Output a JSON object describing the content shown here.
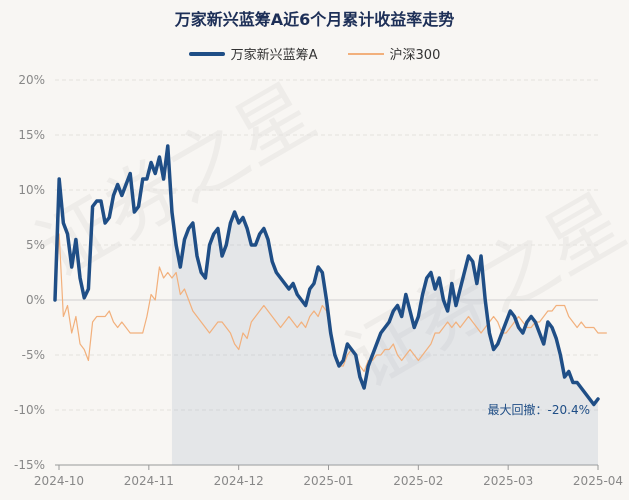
{
  "chart_data": {
    "type": "line",
    "title": "万家新兴蓝筹A近6个月累计收益率走势",
    "ylim": [
      -15,
      20
    ],
    "y_ticks": [
      "20%",
      "15%",
      "10%",
      "5%",
      "0%",
      "-5%",
      "-10%",
      "-15%"
    ],
    "x_ticks": [
      "2024-10",
      "2024-11",
      "2024-12",
      "2025-01",
      "2025-02",
      "2025-03",
      "2025-04"
    ],
    "grid": true,
    "legend_position": "top-center",
    "series": [
      {
        "name": "万家新兴蓝筹A",
        "color": "#1f4e86",
        "values": [
          0,
          11,
          7,
          6,
          3,
          5.5,
          2,
          0.2,
          1,
          8.5,
          9,
          9,
          7,
          7.5,
          9.5,
          10.5,
          9.5,
          10.5,
          11.5,
          8,
          8.5,
          11,
          11,
          12.5,
          11.5,
          13,
          11,
          14,
          8,
          5,
          3,
          5.5,
          6.5,
          7,
          4,
          2.5,
          2,
          5,
          6,
          6.5,
          4,
          5,
          7,
          8,
          7,
          7.5,
          6.5,
          5,
          5,
          6,
          6.5,
          5.5,
          3.5,
          2.5,
          2,
          1.5,
          1,
          1.5,
          0.5,
          0,
          -0.5,
          1,
          1.5,
          3,
          2.5,
          0,
          -3,
          -5,
          -6,
          -5.5,
          -4,
          -4.5,
          -5,
          -7,
          -8,
          -6,
          -5,
          -4,
          -3,
          -2.5,
          -2,
          -1,
          -0.5,
          -1.5,
          0.5,
          -1,
          -2.5,
          -1.5,
          0.5,
          2,
          2.5,
          1,
          2,
          0,
          -1,
          1.5,
          -0.5,
          1,
          2.5,
          4,
          3.5,
          1.5,
          4,
          0,
          -3,
          -4.5,
          -4,
          -3,
          -2,
          -1,
          -1.5,
          -2.5,
          -3,
          -2,
          -1.5,
          -2,
          -3,
          -4,
          -2,
          -2.5,
          -3.5,
          -5,
          -7,
          -6.5,
          -7.5,
          -7.5,
          -8,
          -8.5,
          -9,
          -9.5,
          -9
        ]
      },
      {
        "name": "沪深300",
        "color": "#f2b07c",
        "values": [
          0,
          6,
          -1.5,
          -0.5,
          -3,
          -1.5,
          -4,
          -4.5,
          -5.5,
          -2,
          -1.5,
          -1.5,
          -1.5,
          -1,
          -2,
          -2.5,
          -2,
          -2.5,
          -3,
          -3,
          -3,
          -3,
          -1.5,
          0.5,
          0,
          3,
          2,
          2.5,
          2,
          2.5,
          0.5,
          1,
          0,
          -1,
          -1.5,
          -2,
          -2.5,
          -3,
          -2.5,
          -2,
          -2,
          -2.5,
          -3,
          -4,
          -4.5,
          -3,
          -3.5,
          -2,
          -1.5,
          -1,
          -0.5,
          -1,
          -1.5,
          -2,
          -2.5,
          -2,
          -1.5,
          -2,
          -2.5,
          -2,
          -2.5,
          -1.5,
          -1,
          -1.5,
          -0.5,
          -1,
          -3,
          -5,
          -6,
          -6,
          -5,
          -4.5,
          -5,
          -6,
          -6.5,
          -5.5,
          -5.5,
          -5,
          -5,
          -4.5,
          -4.5,
          -4,
          -5,
          -5.5,
          -5,
          -4.5,
          -5,
          -5.5,
          -5,
          -4.5,
          -4,
          -3,
          -3,
          -2.5,
          -2,
          -2.5,
          -2,
          -2.5,
          -2,
          -1.5,
          -2,
          -2.5,
          -3,
          -2.5,
          -2,
          -1.5,
          -2,
          -3,
          -3,
          -2.5,
          -2,
          -1.5,
          -2,
          -2.5,
          -2.5,
          -2,
          -2,
          -1.5,
          -1,
          -1,
          -0.5,
          -0.5,
          -0.5,
          -1.5,
          -2,
          -2.5,
          -2,
          -2.5,
          -2.5,
          -2.5,
          -3,
          -3,
          -3
        ]
      }
    ],
    "annotation": "最大回撤：-20.4%",
    "shaded_region_start_index": 28
  }
}
